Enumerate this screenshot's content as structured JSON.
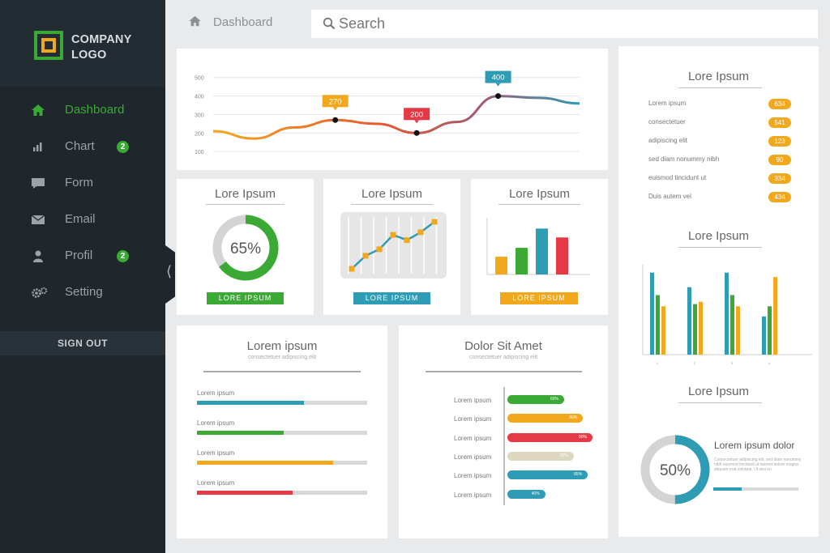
{
  "sidebar": {
    "logo_line1": "COMPANY",
    "logo_line2": "LOGO",
    "items": [
      {
        "label": "Dashboard",
        "icon": "home-icon"
      },
      {
        "label": "Chart",
        "icon": "bar-chart-icon",
        "badge": "2"
      },
      {
        "label": "Form",
        "icon": "chat-icon"
      },
      {
        "label": "Email",
        "icon": "mail-icon"
      },
      {
        "label": "Profil",
        "icon": "user-icon",
        "badge": "2"
      },
      {
        "label": "Setting",
        "icon": "gears-icon"
      }
    ],
    "signout": "SIGN OUT"
  },
  "header": {
    "breadcrumb": "Dashboard",
    "search_placeholder": "Search"
  },
  "colors": {
    "green": "#3aaa35",
    "orange": "#f2a81d",
    "teal": "#2d9cb4",
    "red": "#e63946",
    "beige": "#ddd7c0",
    "dark": "#1f262c"
  },
  "line_card": {
    "chart_data": {
      "type": "line",
      "ylim": [
        0,
        560
      ],
      "y_ticks": [
        "500",
        "400",
        "300",
        "200",
        "100"
      ],
      "callouts": [
        "270",
        "200",
        "400"
      ],
      "callout_values": [
        270,
        200,
        400
      ],
      "series": [
        {
          "x": [
            0,
            1,
            2,
            3,
            4,
            5,
            6,
            7,
            8,
            9
          ],
          "y": [
            210,
            170,
            230,
            270,
            250,
            200,
            260,
            400,
            390,
            360
          ]
        }
      ]
    }
  },
  "donut_card": {
    "title": "Lore Ipsum",
    "percent_text": "65%",
    "percent": 65,
    "button": "LORE IPSUM"
  },
  "spark_card": {
    "title": "Lore Ipsum",
    "button": "LORE IPSUM",
    "chart_data": {
      "type": "line",
      "x": [
        1,
        2,
        3,
        4,
        5,
        6,
        7
      ],
      "y": [
        1,
        2,
        2.5,
        3.6,
        3.2,
        3.8,
        4.6
      ]
    }
  },
  "bars_card": {
    "title": "Lore Ipsum",
    "button": "LORE IPSUM",
    "chart_data": {
      "type": "bar",
      "categories": [
        "",
        "",
        "",
        ""
      ],
      "values": [
        2.4,
        3.6,
        6.2,
        5.0
      ]
    }
  },
  "list_card": {
    "title": "Lore Ipsum",
    "rows": [
      {
        "label": "Lorem ipsum",
        "value": "634"
      },
      {
        "label": "consectetuer",
        "value": "541"
      },
      {
        "label": "adipiscing elit",
        "value": "123"
      },
      {
        "label": "sed diam nonummy nibh",
        "value": "90"
      },
      {
        "label": "euismod tincidunt ut",
        "value": "334"
      },
      {
        "label": "Duis autem vel",
        "value": "434"
      }
    ]
  },
  "grouped_card": {
    "title": "Lore Ipsum",
    "chart_data": {
      "type": "bar",
      "categories": [
        "1",
        "2",
        "3",
        "4"
      ],
      "series": [
        {
          "values": [
            73,
            60,
            73,
            34
          ]
        },
        {
          "values": [
            53,
            45,
            53,
            43
          ]
        },
        {
          "values": [
            43,
            47,
            43,
            69
          ]
        }
      ]
    }
  },
  "progress_card": {
    "title": "Lorem ipsum",
    "subtitle": "consectetuer adipiscing elit",
    "rows": [
      {
        "label": "Lorem ipsum",
        "value": 63
      },
      {
        "label": "Lorem ipsum",
        "value": 51
      },
      {
        "label": "Lorem ipsum",
        "value": 80
      },
      {
        "label": "Lorem ipsum",
        "value": 56
      }
    ]
  },
  "hbar_card": {
    "title": "Dolor Sit Amet",
    "subtitle": "consectetuer adipiscing elit",
    "chart_data": {
      "type": "bar",
      "categories": [
        "Lorem ipsum",
        "Lorem ipsum",
        "Lorem ipsum",
        "Lorem ipsum",
        "Lorem ipsum",
        "Lorem ipsum"
      ],
      "labels": [
        "60%",
        "80%",
        "90%",
        "70%",
        "85%",
        "40%"
      ],
      "values": [
        60,
        80,
        90,
        70,
        85,
        40
      ]
    }
  },
  "donut2_card": {
    "title": "Lore Ipsum",
    "percent_text": "50%",
    "percent": 50,
    "heading": "Lorem ipsum dolor",
    "body": "Consectetuer adipiscing elit, sed diam nonummy nibh euismod tincidunt ut laoreet dolore magna aliquam erat volutpat. Ut wisi en"
  }
}
